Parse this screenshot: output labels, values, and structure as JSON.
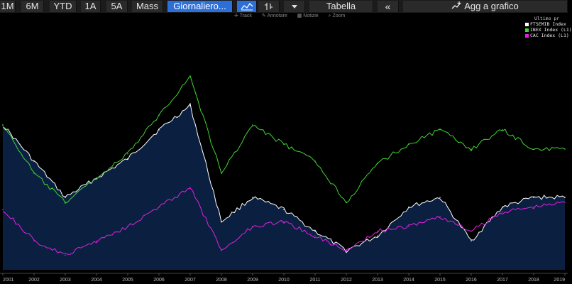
{
  "toolbar": {
    "ranges": [
      "1M",
      "6M",
      "YTD",
      "1A",
      "5A",
      "Mass"
    ],
    "frequency": "Giornaliero...",
    "table_label": "Tabella",
    "collapse_glyph": "«",
    "add_to_chart": "Agg a grafico"
  },
  "subtoolbar": {
    "track": "Track",
    "annotate": "Annotare",
    "news": "Notizie",
    "zoom": "Zoom"
  },
  "legend": {
    "title": "Ultimo pr",
    "entries": [
      {
        "label": "FTSEMIB Index",
        "color": "#ffffff"
      },
      {
        "label": "IBEX Index  (L1)",
        "color": "#3fd630"
      },
      {
        "label": "CAC Index  (L1)",
        "color": "#e020e0"
      }
    ]
  },
  "chart_data": {
    "type": "line",
    "title": "",
    "xlabel": "",
    "ylabel": "",
    "x": [
      "2001",
      "2002",
      "2003",
      "2004",
      "2005",
      "2006",
      "2007",
      "2008",
      "2009",
      "2010",
      "2011",
      "2012",
      "2013",
      "2014",
      "2015",
      "2016",
      "2017",
      "2018",
      "2019"
    ],
    "ylim": [
      0,
      100
    ],
    "series": [
      {
        "name": "FTSEMIB Index",
        "color": "#ffffff",
        "fill": "#0b2040",
        "values": [
          60,
          45,
          30,
          38,
          46,
          58,
          68,
          20,
          30,
          25,
          16,
          8,
          14,
          26,
          30,
          12,
          26,
          30,
          30
        ]
      },
      {
        "name": "IBEX Index (L1)",
        "color": "#3fd630",
        "values": [
          60,
          40,
          28,
          38,
          48,
          64,
          80,
          40,
          60,
          52,
          45,
          28,
          44,
          52,
          58,
          50,
          58,
          50,
          50
        ]
      },
      {
        "name": "CAC Index (L1)",
        "color": "#e020e0",
        "values": [
          25,
          12,
          6,
          12,
          18,
          26,
          34,
          8,
          18,
          20,
          14,
          8,
          16,
          18,
          22,
          16,
          24,
          26,
          28
        ]
      }
    ]
  }
}
